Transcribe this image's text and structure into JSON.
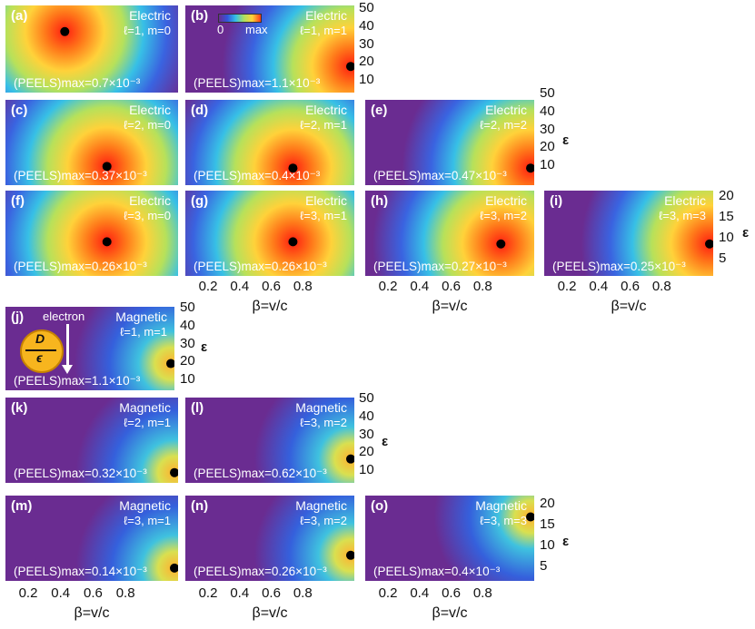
{
  "chart_data": {
    "type": "heatmap",
    "xlabel": "β=v/c",
    "ylabel": "ε",
    "colorbar": {
      "min_label": "0",
      "max_label": "max"
    },
    "xticks": [
      "0.2",
      "0.4",
      "0.6",
      "0.8"
    ],
    "yticks_50": [
      "50",
      "40",
      "30",
      "20",
      "10"
    ],
    "yticks_20": [
      "20",
      "15",
      "10",
      "5"
    ],
    "inset": {
      "diameter_label": "D",
      "permittivity_label": "ϵ",
      "electron_label": "electron"
    },
    "panels": [
      {
        "label": "(a)",
        "type": "Electric",
        "mode": "ℓ=1, m=0",
        "pmax": "(PEELS)max=0.7×10⁻³",
        "ymax": 50,
        "max_point": [
          0.35,
          35
        ]
      },
      {
        "label": "(b)",
        "type": "Electric",
        "mode": "ℓ=1, m=1",
        "pmax": "(PEELS)max=1.1×10⁻³",
        "ymax": 50,
        "max_point": [
          1.0,
          15
        ]
      },
      {
        "label": "(c)",
        "type": "Electric",
        "mode": "ℓ=2, m=0",
        "pmax": "(PEELS)max=0.37×10⁻³",
        "ymax": 50,
        "max_point": [
          0.6,
          11
        ]
      },
      {
        "label": "(d)",
        "type": "Electric",
        "mode": "ℓ=2, m=1",
        "pmax": "(PEELS)max=0.4×10⁻³",
        "ymax": 50,
        "max_point": [
          0.65,
          10
        ]
      },
      {
        "label": "(e)",
        "type": "Electric",
        "mode": "ℓ=2, m=2",
        "pmax": "(PEELS)max=0.47×10⁻³",
        "ymax": 50,
        "max_point": [
          1.0,
          10
        ]
      },
      {
        "label": "(f)",
        "type": "Electric",
        "mode": "ℓ=3, m=0",
        "pmax": "(PEELS)max=0.26×10⁻³",
        "ymax": 20,
        "max_point": [
          0.6,
          8
        ]
      },
      {
        "label": "(g)",
        "type": "Electric",
        "mode": "ℓ=3, m=1",
        "pmax": "(PEELS)max=0.26×10⁻³",
        "ymax": 20,
        "max_point": [
          0.65,
          8
        ]
      },
      {
        "label": "(h)",
        "type": "Electric",
        "mode": "ℓ=3, m=2",
        "pmax": "(PEELS)max=0.27×10⁻³",
        "ymax": 20,
        "max_point": [
          0.82,
          7.5
        ]
      },
      {
        "label": "(i)",
        "type": "Electric",
        "mode": "ℓ=3, m=3",
        "pmax": "(PEELS)max=0.25×10⁻³",
        "ymax": 20,
        "max_point": [
          1.0,
          7.5
        ]
      },
      {
        "label": "(j)",
        "type": "Magnetic",
        "mode": "ℓ=1, m=1",
        "pmax": "(PEELS)max=1.1×10⁻³",
        "ymax": 50,
        "max_point": [
          1.0,
          16
        ]
      },
      {
        "label": "(k)",
        "type": "Magnetic",
        "mode": "ℓ=2, m=1",
        "pmax": "(PEELS)max=0.32×10⁻³",
        "ymax": 50,
        "max_point": [
          1.0,
          6
        ]
      },
      {
        "label": "(l)",
        "type": "Magnetic",
        "mode": "ℓ=3, m=2",
        "pmax": "(PEELS)max=0.62×10⁻³",
        "ymax": 50,
        "max_point": [
          1.0,
          14
        ]
      },
      {
        "label": "(m)",
        "type": "Magnetic",
        "mode": "ℓ=3, m=1",
        "pmax": "(PEELS)max=0.14×10⁻³",
        "ymax": 20,
        "max_point": [
          1.0,
          3
        ]
      },
      {
        "label": "(n)",
        "type": "Magnetic",
        "mode": "ℓ=3, m=2",
        "pmax": "(PEELS)max=0.26×10⁻³",
        "ymax": 20,
        "max_point": [
          1.0,
          6
        ]
      },
      {
        "label": "(o)",
        "type": "Magnetic",
        "mode": "ℓ=3, m=3",
        "pmax": "(PEELS)max=0.4×10⁻³",
        "ymax": 20,
        "max_point": [
          1.0,
          15
        ]
      }
    ]
  }
}
